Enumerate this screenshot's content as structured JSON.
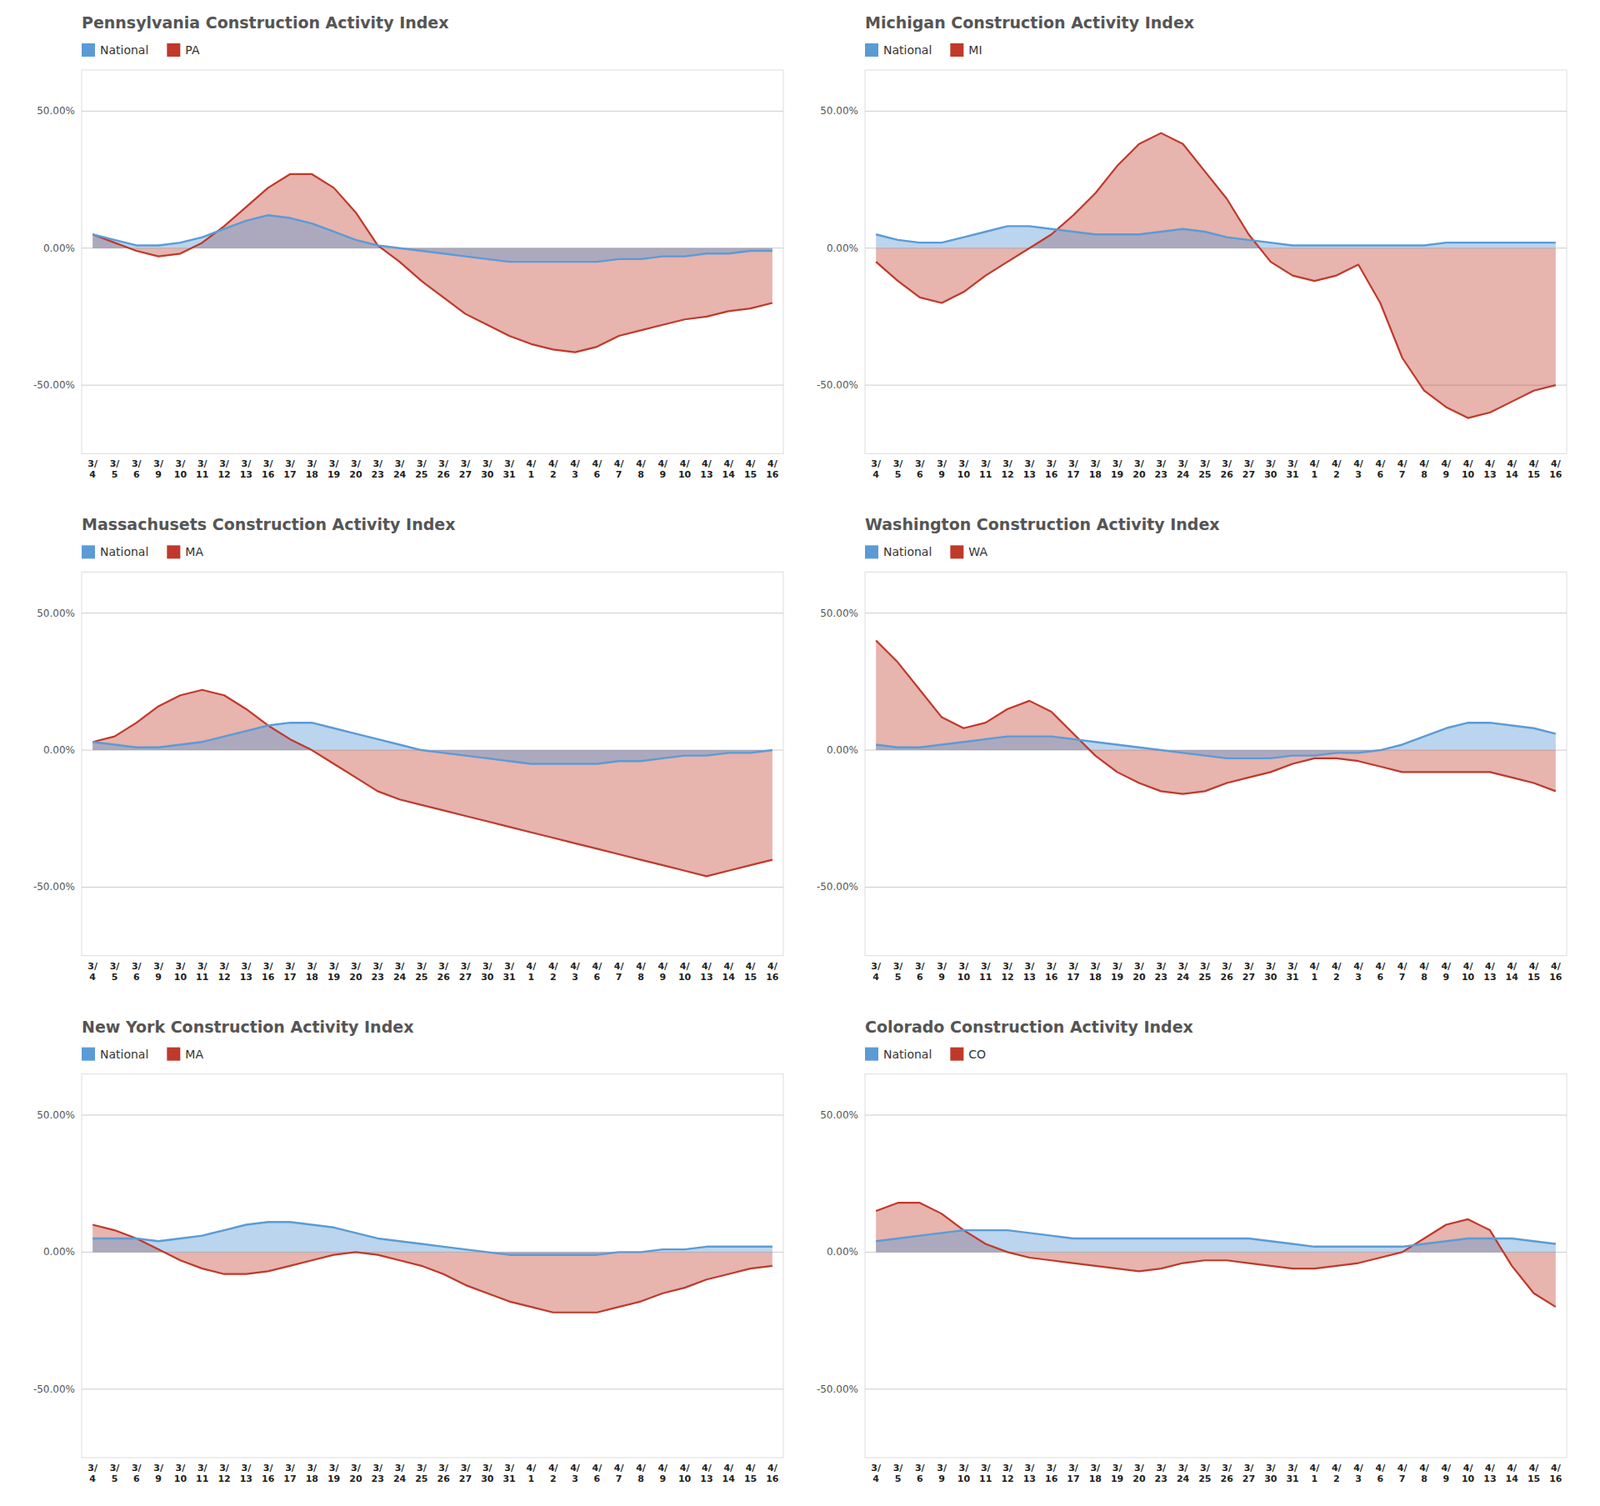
{
  "chart_data": [
    {
      "type": "area",
      "title": "Pennsylvania Construction Activity Index",
      "categories": [
        "3/\n4",
        "3/\n5",
        "3/\n6",
        "3/\n9",
        "3/\n10",
        "3/\n11",
        "3/\n12",
        "3/\n13",
        "3/\n16",
        "3/\n17",
        "3/\n18",
        "3/\n19",
        "3/\n20",
        "3/\n23",
        "3/\n24",
        "3/\n25",
        "3/\n26",
        "3/\n27",
        "3/\n30",
        "3/\n31",
        "4/\n1",
        "4/\n2",
        "4/\n3",
        "4/\n6",
        "4/\n7",
        "4/\n8",
        "4/\n9",
        "4/\n10",
        "4/\n13",
        "4/\n14",
        "4/\n15",
        "4/\n16"
      ],
      "series": [
        {
          "name": "National",
          "color": "#5B9BD5",
          "values": [
            5,
            3,
            1,
            1,
            2,
            4,
            7,
            10,
            12,
            11,
            9,
            6,
            3,
            1,
            0,
            -1,
            -2,
            -3,
            -4,
            -5,
            -5,
            -5,
            -5,
            -5,
            -4,
            -4,
            -3,
            -3,
            -2,
            -2,
            -1,
            -1
          ]
        },
        {
          "name": "PA",
          "color": "#C0392B",
          "values": [
            5,
            2,
            -1,
            -3,
            -2,
            2,
            8,
            15,
            22,
            27,
            27,
            22,
            13,
            1,
            -5,
            -12,
            -18,
            -24,
            -28,
            -32,
            -35,
            -37,
            -38,
            -36,
            -32,
            -30,
            -28,
            -26,
            -25,
            -23,
            -22,
            -20
          ]
        }
      ],
      "ylim": [
        -75,
        65
      ],
      "yticks": [
        {
          "value": -50,
          "label": "-50.00%"
        },
        {
          "value": 0,
          "label": "0.00%"
        },
        {
          "value": 50,
          "label": "50.00%"
        }
      ],
      "grid": true,
      "legend": "upper left"
    },
    {
      "type": "area",
      "title": "Michigan Construction Activity Index",
      "categories": [
        "3/\n4",
        "3/\n5",
        "3/\n6",
        "3/\n9",
        "3/\n10",
        "3/\n11",
        "3/\n12",
        "3/\n13",
        "3/\n16",
        "3/\n17",
        "3/\n18",
        "3/\n19",
        "3/\n20",
        "3/\n23",
        "3/\n24",
        "3/\n25",
        "3/\n26",
        "3/\n27",
        "3/\n30",
        "3/\n31",
        "4/\n1",
        "4/\n2",
        "4/\n3",
        "4/\n6",
        "4/\n7",
        "4/\n8",
        "4/\n9",
        "4/\n10",
        "4/\n13",
        "4/\n14",
        "4/\n15",
        "4/\n16"
      ],
      "series": [
        {
          "name": "National",
          "color": "#5B9BD5",
          "values": [
            5,
            3,
            2,
            2,
            4,
            6,
            8,
            8,
            7,
            6,
            5,
            5,
            5,
            6,
            7,
            6,
            4,
            3,
            2,
            1,
            1,
            1,
            1,
            1,
            1,
            1,
            2,
            2,
            2,
            2,
            2,
            2
          ]
        },
        {
          "name": "MI",
          "color": "#C0392B",
          "values": [
            -5,
            -12,
            -18,
            -20,
            -16,
            -10,
            -5,
            0,
            5,
            12,
            20,
            30,
            38,
            42,
            38,
            28,
            18,
            5,
            -5,
            -10,
            -12,
            -10,
            -6,
            -20,
            -40,
            -52,
            -58,
            -62,
            -60,
            -56,
            -52,
            -50
          ]
        }
      ],
      "ylim": [
        -75,
        65
      ],
      "yticks": [
        {
          "value": -50,
          "label": "-50.00%"
        },
        {
          "value": 0,
          "label": "0.00%"
        },
        {
          "value": 50,
          "label": "50.00%"
        }
      ],
      "grid": true,
      "legend": "upper left"
    },
    {
      "type": "area",
      "title": "Massachusets Construction Activity Index",
      "categories": [
        "3/\n4",
        "3/\n5",
        "3/\n6",
        "3/\n9",
        "3/\n10",
        "3/\n11",
        "3/\n12",
        "3/\n13",
        "3/\n16",
        "3/\n17",
        "3/\n18",
        "3/\n19",
        "3/\n20",
        "3/\n23",
        "3/\n24",
        "3/\n25",
        "3/\n26",
        "3/\n27",
        "3/\n30",
        "3/\n31",
        "4/\n1",
        "4/\n2",
        "4/\n3",
        "4/\n6",
        "4/\n7",
        "4/\n8",
        "4/\n9",
        "4/\n10",
        "4/\n13",
        "4/\n14",
        "4/\n15",
        "4/\n16"
      ],
      "series": [
        {
          "name": "National",
          "color": "#5B9BD5",
          "values": [
            3,
            2,
            1,
            1,
            2,
            3,
            5,
            7,
            9,
            10,
            10,
            8,
            6,
            4,
            2,
            0,
            -1,
            -2,
            -3,
            -4,
            -5,
            -5,
            -5,
            -5,
            -4,
            -4,
            -3,
            -2,
            -2,
            -1,
            -1,
            0
          ]
        },
        {
          "name": "MA",
          "color": "#C0392B",
          "values": [
            3,
            5,
            10,
            16,
            20,
            22,
            20,
            15,
            9,
            4,
            0,
            -5,
            -10,
            -15,
            -18,
            -20,
            -22,
            -24,
            -26,
            -28,
            -30,
            -32,
            -34,
            -36,
            -38,
            -40,
            -42,
            -44,
            -46,
            -44,
            -42,
            -40
          ]
        }
      ],
      "ylim": [
        -75,
        65
      ],
      "yticks": [
        {
          "value": -50,
          "label": "-50.00%"
        },
        {
          "value": 0,
          "label": "0.00%"
        },
        {
          "value": 50,
          "label": "50.00%"
        }
      ],
      "grid": true,
      "legend": "upper left"
    },
    {
      "type": "area",
      "title": "Washington Construction Activity Index",
      "categories": [
        "3/\n4",
        "3/\n5",
        "3/\n6",
        "3/\n9",
        "3/\n10",
        "3/\n11",
        "3/\n12",
        "3/\n13",
        "3/\n16",
        "3/\n17",
        "3/\n18",
        "3/\n19",
        "3/\n20",
        "3/\n23",
        "3/\n24",
        "3/\n25",
        "3/\n26",
        "3/\n27",
        "3/\n30",
        "3/\n31",
        "4/\n1",
        "4/\n2",
        "4/\n3",
        "4/\n6",
        "4/\n7",
        "4/\n8",
        "4/\n9",
        "4/\n10",
        "4/\n13",
        "4/\n14",
        "4/\n15",
        "4/\n16"
      ],
      "series": [
        {
          "name": "National",
          "color": "#5B9BD5",
          "values": [
            2,
            1,
            1,
            2,
            3,
            4,
            5,
            5,
            5,
            4,
            3,
            2,
            1,
            0,
            -1,
            -2,
            -3,
            -3,
            -3,
            -2,
            -2,
            -1,
            -1,
            0,
            2,
            5,
            8,
            10,
            10,
            9,
            8,
            6
          ]
        },
        {
          "name": "WA",
          "color": "#C0392B",
          "values": [
            40,
            32,
            22,
            12,
            8,
            10,
            15,
            18,
            14,
            6,
            -2,
            -8,
            -12,
            -15,
            -16,
            -15,
            -12,
            -10,
            -8,
            -5,
            -3,
            -3,
            -4,
            -6,
            -8,
            -8,
            -8,
            -8,
            -8,
            -10,
            -12,
            -15
          ]
        }
      ],
      "ylim": [
        -75,
        65
      ],
      "yticks": [
        {
          "value": -50,
          "label": "-50.00%"
        },
        {
          "value": 0,
          "label": "0.00%"
        },
        {
          "value": 50,
          "label": "50.00%"
        }
      ],
      "grid": true,
      "legend": "upper left"
    },
    {
      "type": "area",
      "title": "New York Construction Activity Index",
      "categories": [
        "3/\n4",
        "3/\n5",
        "3/\n6",
        "3/\n9",
        "3/\n10",
        "3/\n11",
        "3/\n12",
        "3/\n13",
        "3/\n16",
        "3/\n17",
        "3/\n18",
        "3/\n19",
        "3/\n20",
        "3/\n23",
        "3/\n24",
        "3/\n25",
        "3/\n26",
        "3/\n27",
        "3/\n30",
        "3/\n31",
        "4/\n1",
        "4/\n2",
        "4/\n3",
        "4/\n6",
        "4/\n7",
        "4/\n8",
        "4/\n9",
        "4/\n10",
        "4/\n13",
        "4/\n14",
        "4/\n15",
        "4/\n16"
      ],
      "series": [
        {
          "name": "National",
          "color": "#5B9BD5",
          "values": [
            5,
            5,
            5,
            4,
            5,
            6,
            8,
            10,
            11,
            11,
            10,
            9,
            7,
            5,
            4,
            3,
            2,
            1,
            0,
            -1,
            -1,
            -1,
            -1,
            -1,
            0,
            0,
            1,
            1,
            2,
            2,
            2,
            2
          ]
        },
        {
          "name": "MA",
          "color": "#C0392B",
          "values": [
            10,
            8,
            5,
            1,
            -3,
            -6,
            -8,
            -8,
            -7,
            -5,
            -3,
            -1,
            0,
            -1,
            -3,
            -5,
            -8,
            -12,
            -15,
            -18,
            -20,
            -22,
            -22,
            -22,
            -20,
            -18,
            -15,
            -13,
            -10,
            -8,
            -6,
            -5
          ]
        }
      ],
      "ylim": [
        -75,
        65
      ],
      "yticks": [
        {
          "value": -50,
          "label": "-50.00%"
        },
        {
          "value": 0,
          "label": "0.00%"
        },
        {
          "value": 50,
          "label": "50.00%"
        }
      ],
      "grid": true,
      "legend": "upper left"
    },
    {
      "type": "area",
      "title": "Colorado Construction Activity Index",
      "categories": [
        "3/\n4",
        "3/\n5",
        "3/\n6",
        "3/\n9",
        "3/\n10",
        "3/\n11",
        "3/\n12",
        "3/\n13",
        "3/\n16",
        "3/\n17",
        "3/\n18",
        "3/\n19",
        "3/\n20",
        "3/\n23",
        "3/\n24",
        "3/\n25",
        "3/\n26",
        "3/\n27",
        "3/\n30",
        "3/\n31",
        "4/\n1",
        "4/\n2",
        "4/\n3",
        "4/\n6",
        "4/\n7",
        "4/\n8",
        "4/\n9",
        "4/\n10",
        "4/\n13",
        "4/\n14",
        "4/\n15",
        "4/\n16"
      ],
      "series": [
        {
          "name": "National",
          "color": "#5B9BD5",
          "values": [
            4,
            5,
            6,
            7,
            8,
            8,
            8,
            7,
            6,
            5,
            5,
            5,
            5,
            5,
            5,
            5,
            5,
            5,
            4,
            3,
            2,
            2,
            2,
            2,
            2,
            3,
            4,
            5,
            5,
            5,
            4,
            3
          ]
        },
        {
          "name": "CO",
          "color": "#C0392B",
          "values": [
            15,
            18,
            18,
            14,
            8,
            3,
            0,
            -2,
            -3,
            -4,
            -5,
            -6,
            -7,
            -6,
            -4,
            -3,
            -3,
            -4,
            -5,
            -6,
            -6,
            -5,
            -4,
            -2,
            0,
            5,
            10,
            12,
            8,
            -5,
            -15,
            -20
          ]
        }
      ],
      "ylim": [
        -75,
        65
      ],
      "yticks": [
        {
          "value": -50,
          "label": "-50.00%"
        },
        {
          "value": 0,
          "label": "0.00%"
        },
        {
          "value": 50,
          "label": "50.00%"
        }
      ],
      "grid": true,
      "legend": "upper left"
    }
  ]
}
